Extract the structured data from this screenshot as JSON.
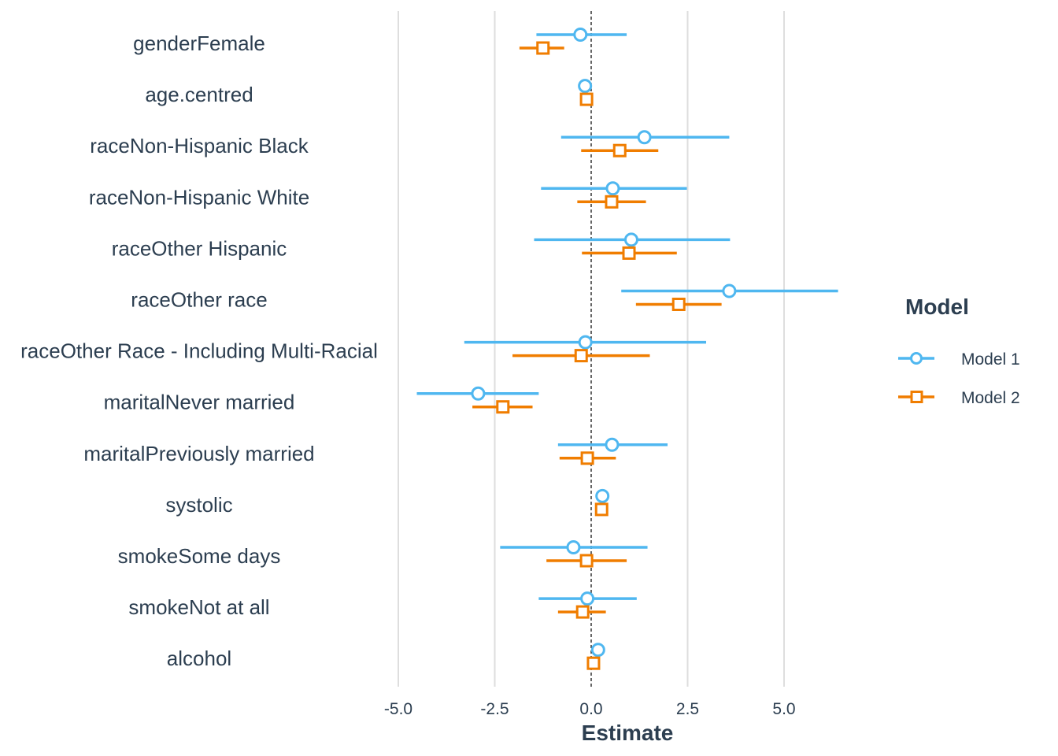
{
  "chart_data": {
    "type": "scatter",
    "subtype": "coefficient-plot-with-intervals",
    "title": "",
    "xlabel": "Estimate",
    "ylabel": "",
    "xlim": [
      -6.0,
      7.5
    ],
    "xticks": [
      "-5.0",
      "-2.5",
      "0.0",
      "2.5",
      "5.0"
    ],
    "xtick_values": [
      -5.0,
      -2.5,
      0.0,
      2.5,
      5.0
    ],
    "vertical_grid": true,
    "reference_line": {
      "x": 0,
      "style": "dashed"
    },
    "legend": {
      "title": "Model",
      "position": "right"
    },
    "terms": [
      "genderFemale",
      "age.centred",
      "raceNon-Hispanic Black",
      "raceNon-Hispanic White",
      "raceOther Hispanic",
      "raceOther race",
      "raceOther Race - Including Multi-Racial",
      "maritalNever married",
      "maritalPreviously married",
      "systolic",
      "smokeSome days",
      "smokeNot at all",
      "alcohol"
    ],
    "series": [
      {
        "name": "Model 1",
        "marker": "circle",
        "color": "#4fb7f0",
        "estimate": [
          -0.28,
          -0.16,
          1.38,
          0.56,
          1.04,
          3.58,
          -0.15,
          -2.93,
          0.54,
          0.29,
          -0.46,
          -0.1,
          0.18
        ],
        "low": [
          -1.42,
          -0.2,
          -0.78,
          -1.3,
          -1.48,
          0.78,
          -3.29,
          -4.52,
          -0.86,
          0.27,
          -2.36,
          -1.36,
          0.16
        ],
        "high": [
          0.92,
          -0.12,
          3.58,
          2.48,
          3.6,
          6.4,
          2.98,
          -1.36,
          1.98,
          0.31,
          1.46,
          1.18,
          0.2
        ]
      },
      {
        "name": "Model 2",
        "marker": "square",
        "color": "#f07d00",
        "estimate": [
          -1.25,
          -0.12,
          0.74,
          0.53,
          0.98,
          2.27,
          -0.26,
          -2.29,
          -0.1,
          0.27,
          -0.12,
          -0.22,
          0.06
        ],
        "low": [
          -1.86,
          -0.16,
          -0.26,
          -0.36,
          -0.24,
          1.16,
          -2.04,
          -3.08,
          -0.82,
          0.25,
          -1.16,
          -0.86,
          0.04
        ],
        "high": [
          -0.7,
          -0.08,
          1.74,
          1.42,
          2.22,
          3.38,
          1.52,
          -1.52,
          0.64,
          0.29,
          0.92,
          0.38,
          0.08
        ]
      }
    ]
  }
}
